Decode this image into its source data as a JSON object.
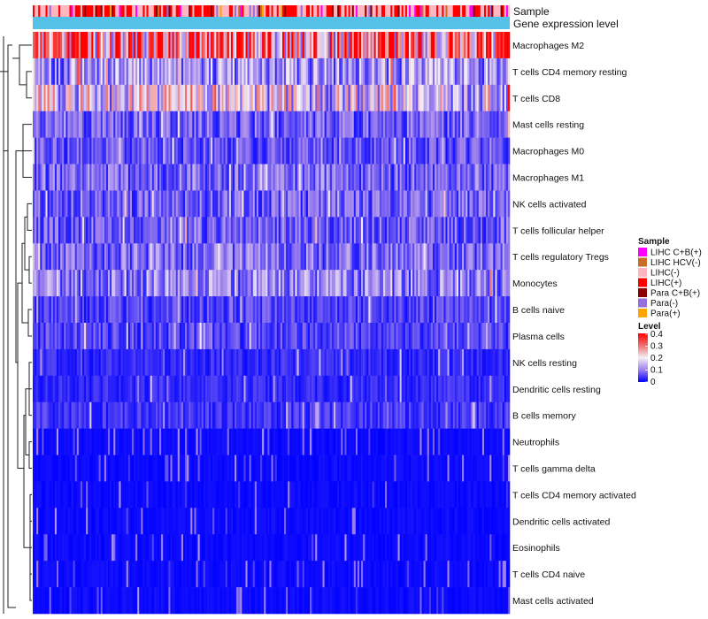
{
  "chart_data": {
    "type": "heatmap",
    "annotation_tracks": [
      "Sample",
      "Gene expression level"
    ],
    "rows": [
      "Macrophages M2",
      "T cells CD4 memory resting",
      "T cells CD8",
      "Mast cells resting",
      "Macrophages M0",
      "Macrophages M1",
      "NK cells activated",
      "T cells follicular helper",
      "T cells regulatory  Tregs",
      "Monocytes",
      "B cells naive",
      "Plasma cells",
      "NK cells resting",
      "Dendritic cells resting",
      "B cells memory",
      "Neutrophils",
      "T cells gamma delta",
      "T cells CD4 memory activated",
      "Dendritic cells activated",
      "Eosinophils",
      "T cells CD4 naive",
      "Mast cells activated"
    ],
    "row_mean_levels": [
      0.3,
      0.12,
      0.17,
      0.07,
      0.06,
      0.08,
      0.07,
      0.07,
      0.08,
      0.1,
      0.05,
      0.05,
      0.03,
      0.03,
      0.04,
      0.02,
      0.02,
      0.015,
      0.015,
      0.01,
      0.01,
      0.015
    ],
    "n_samples": 260,
    "color_scale": {
      "stops": [
        0,
        0.1,
        0.2,
        0.3,
        0.4
      ],
      "colors": [
        "#0000ff",
        "#9d80ec",
        "#f5f0f5",
        "#f07070",
        "#ff0000"
      ]
    },
    "legend": {
      "sample_title": "Sample",
      "sample_items": [
        {
          "label": "LIHC C+B(+)",
          "color": "#ff00ff"
        },
        {
          "label": "LIHC HCV(-)",
          "color": "#c86e28"
        },
        {
          "label": "LIHC(-)",
          "color": "#ffb6c1"
        },
        {
          "label": "LIHC(+)",
          "color": "#ff0000"
        },
        {
          "label": "Para C+B(+)",
          "color": "#8b0000"
        },
        {
          "label": "Para(-)",
          "color": "#9370db"
        },
        {
          "label": "Para(+)",
          "color": "#ffa500"
        }
      ],
      "level_title": "Level",
      "level_ticks": [
        "0.4",
        "0.3",
        "0.2",
        "0.1",
        "0"
      ]
    },
    "gene_expression_color": "#56c1e6",
    "background_color": "#ffffff"
  }
}
